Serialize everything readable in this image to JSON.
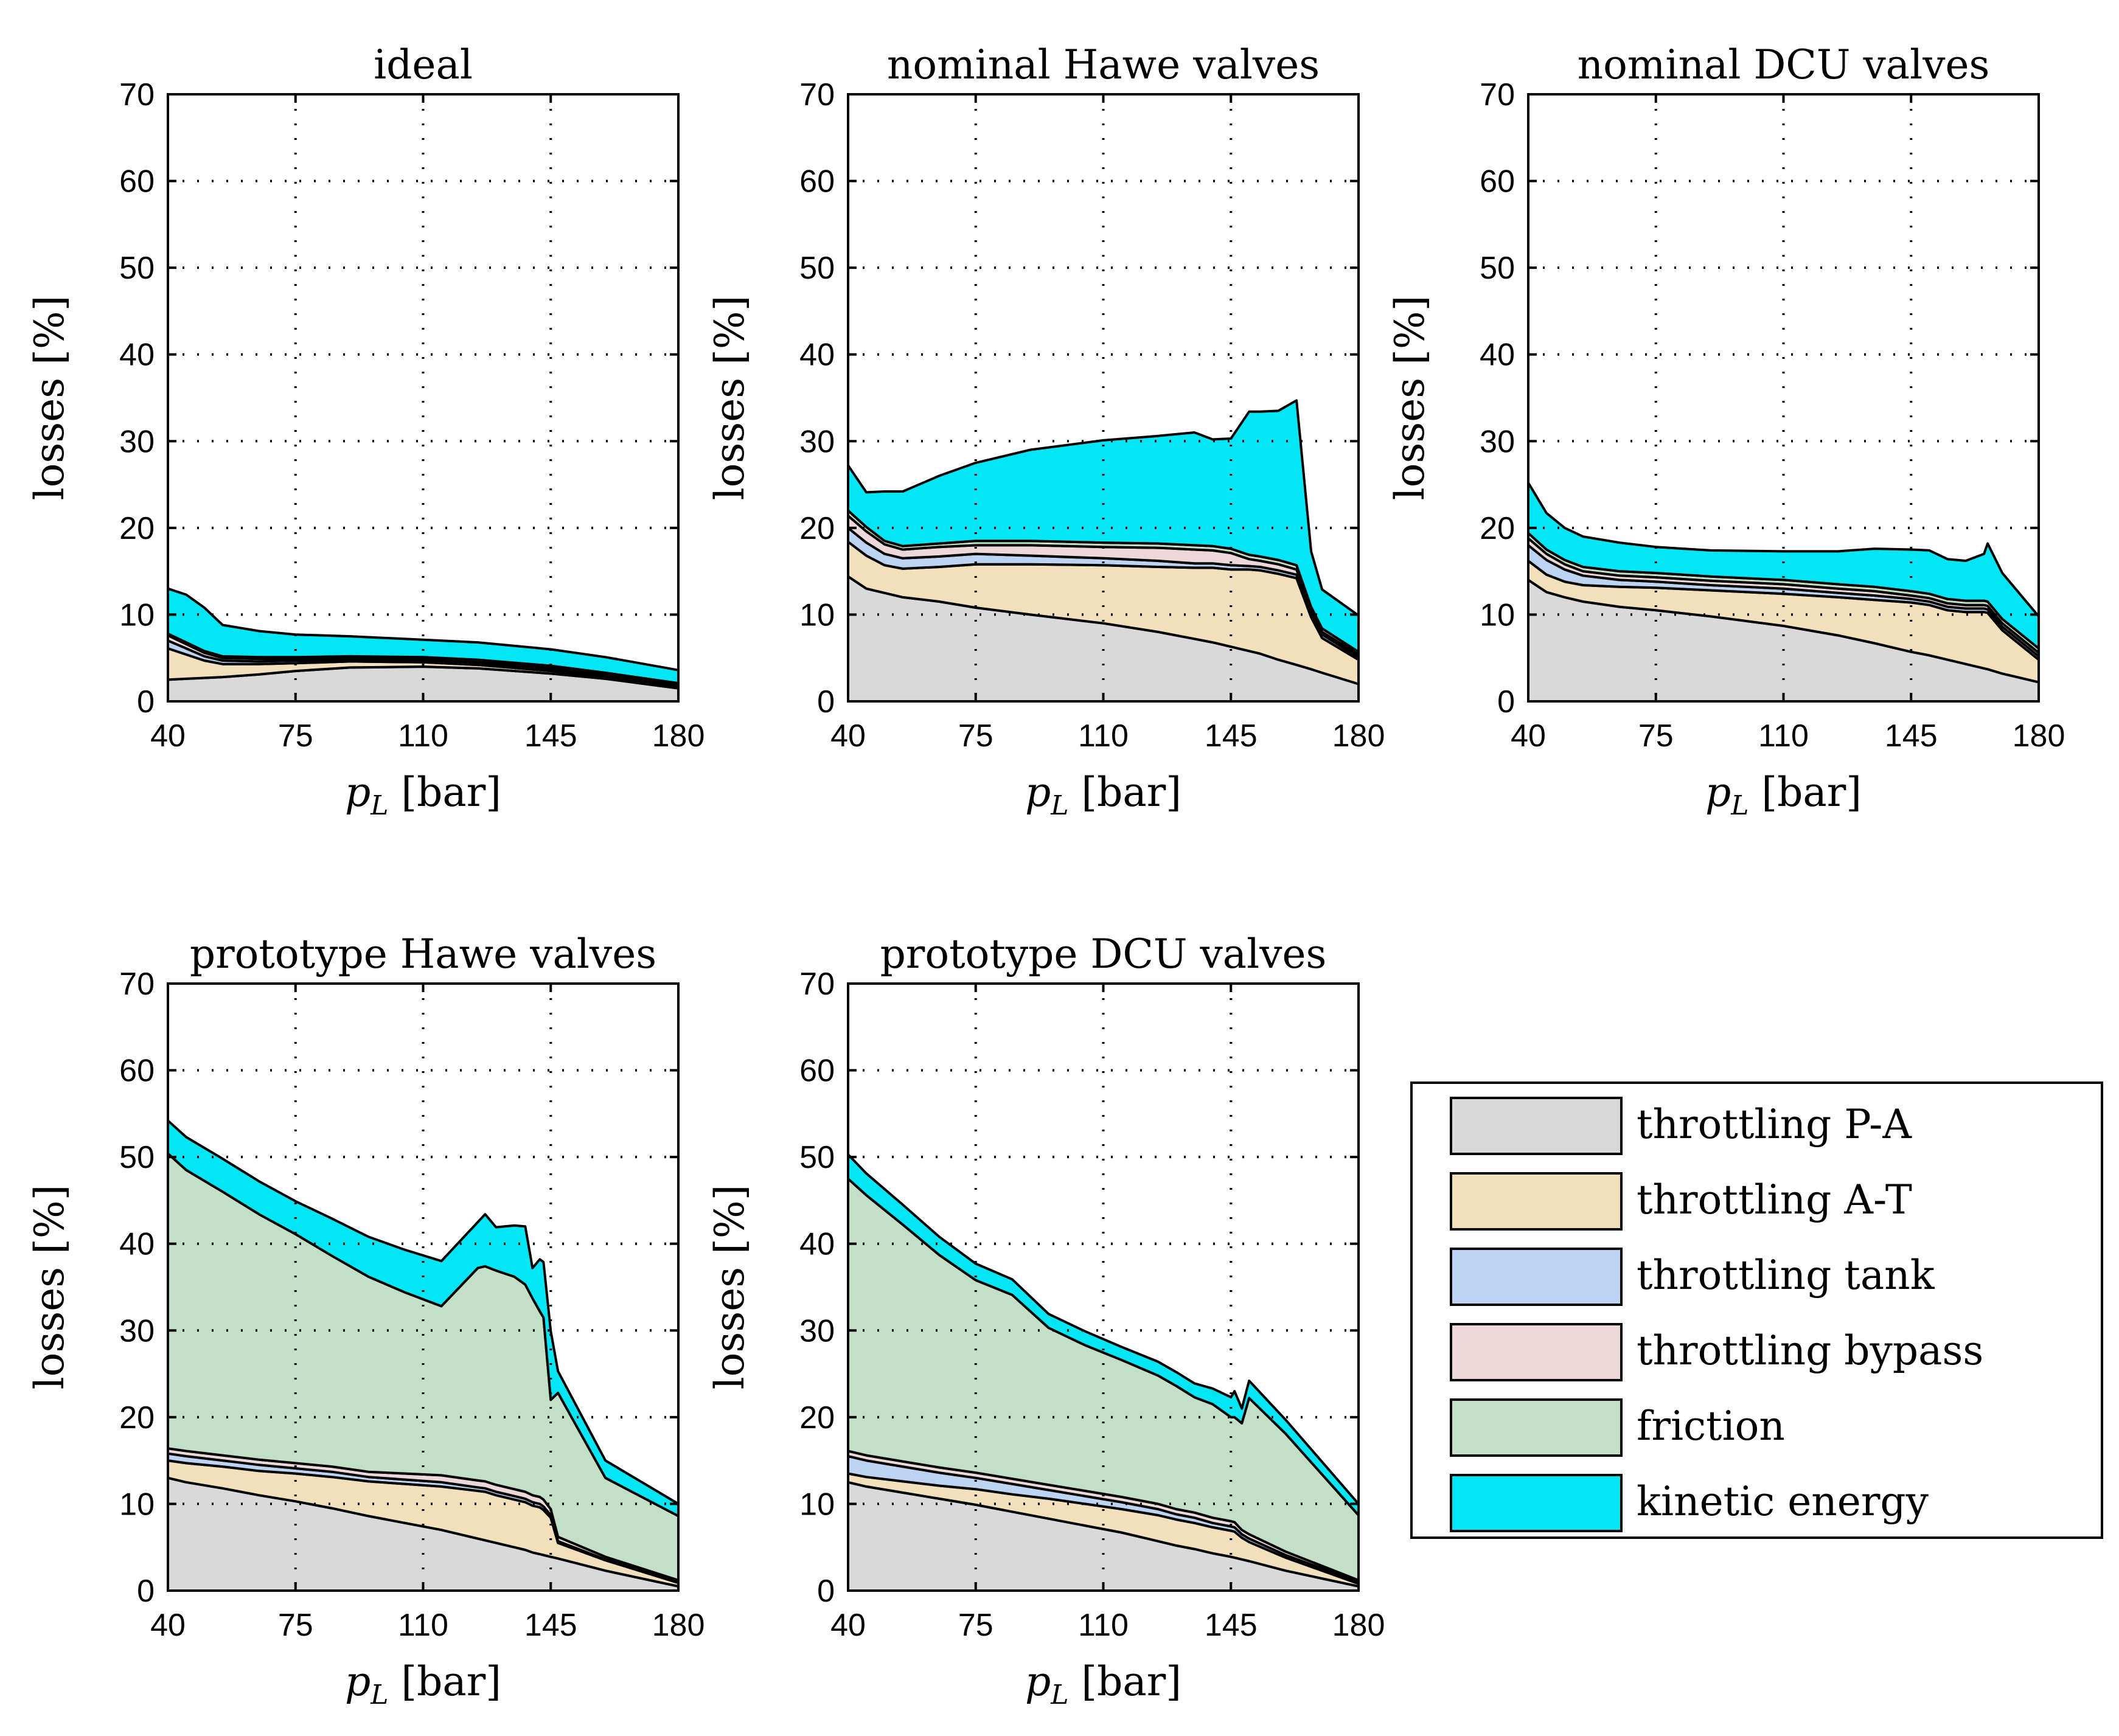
{
  "legend": [
    {
      "name": "throttling P-A",
      "color": "#d9d9d9"
    },
    {
      "name": "throttling A-T",
      "color": "#f2dfbb"
    },
    {
      "name": "throttling tank",
      "color": "#bcd3f2"
    },
    {
      "name": "throttling bypass",
      "color": "#ecd8d8"
    },
    {
      "name": "friction",
      "color": "#c3dfc7"
    },
    {
      "name": "kinetic energy",
      "color": "#00e6f5"
    }
  ],
  "chart_data": [
    {
      "type": "area",
      "title": "ideal",
      "xlabel": "p_L [bar]",
      "xlabel_var": "p",
      "xlabel_sub": "L",
      "xlabel_unit": "[bar]",
      "ylabel": "losses [%]",
      "xlim": [
        40,
        180
      ],
      "ylim": [
        0,
        70
      ],
      "xticks": [
        "40",
        "75",
        "110",
        "145",
        "180"
      ],
      "yticks": [
        "0",
        "10",
        "20",
        "30",
        "40",
        "50",
        "60",
        "70"
      ],
      "x": [
        40,
        45,
        50,
        55,
        65,
        75,
        90,
        110,
        125,
        145,
        160,
        180
      ],
      "series": [
        {
          "name": "throttling P-A",
          "values": [
            2.5,
            2.6,
            2.7,
            2.8,
            3.1,
            3.5,
            3.9,
            4.0,
            3.8,
            3.2,
            2.6,
            1.5
          ]
        },
        {
          "name": "throttling A-T",
          "values": [
            3.6,
            2.8,
            2.0,
            1.5,
            1.2,
            0.9,
            0.7,
            0.5,
            0.4,
            0.3,
            0.2,
            0.1
          ]
        },
        {
          "name": "throttling tank",
          "values": [
            0.9,
            0.7,
            0.5,
            0.4,
            0.3,
            0.3,
            0.2,
            0.2,
            0.2,
            0.2,
            0.1,
            0.1
          ]
        },
        {
          "name": "throttling bypass",
          "values": [
            0.6,
            0.5,
            0.4,
            0.3,
            0.3,
            0.2,
            0.2,
            0.2,
            0.2,
            0.2,
            0.2,
            0.2
          ]
        },
        {
          "name": "friction",
          "values": [
            0.2,
            0.2,
            0.2,
            0.2,
            0.2,
            0.2,
            0.2,
            0.2,
            0.2,
            0.2,
            0.2,
            0.2
          ]
        },
        {
          "name": "kinetic energy",
          "values": [
            5.2,
            5.5,
            5.0,
            3.6,
            3.0,
            2.6,
            2.3,
            2.0,
            2.0,
            1.9,
            1.8,
            1.5
          ]
        }
      ]
    },
    {
      "type": "area",
      "title": "nominal Hawe valves",
      "xlabel": "p_L [bar]",
      "xlabel_var": "p",
      "xlabel_sub": "L",
      "xlabel_unit": "[bar]",
      "ylabel": "losses [%]",
      "xlim": [
        40,
        180
      ],
      "ylim": [
        0,
        70
      ],
      "xticks": [
        "40",
        "75",
        "110",
        "145",
        "180"
      ],
      "yticks": [
        "0",
        "10",
        "20",
        "30",
        "40",
        "50",
        "60",
        "70"
      ],
      "x": [
        40,
        45,
        50,
        55,
        65,
        75,
        90,
        110,
        125,
        135,
        140,
        145,
        150,
        153,
        158,
        163,
        167,
        170,
        180
      ],
      "series": [
        {
          "name": "throttling P-A",
          "values": [
            14.4,
            13.0,
            12.5,
            12.0,
            11.5,
            10.8,
            10.0,
            9.0,
            8.0,
            7.2,
            6.8,
            6.3,
            5.8,
            5.5,
            4.8,
            4.2,
            3.7,
            3.3,
            2.0
          ]
        },
        {
          "name": "throttling A-T",
          "values": [
            4.0,
            3.8,
            3.2,
            3.3,
            4.0,
            5.0,
            5.8,
            6.7,
            7.5,
            8.2,
            8.6,
            8.9,
            9.4,
            9.6,
            9.9,
            10.0,
            6.0,
            4.0,
            2.8
          ]
        },
        {
          "name": "throttling tank",
          "values": [
            1.6,
            1.5,
            1.3,
            1.2,
            1.2,
            1.2,
            1.0,
            0.8,
            0.7,
            0.5,
            0.5,
            0.5,
            0.4,
            0.4,
            0.4,
            0.4,
            0.4,
            0.4,
            0.3
          ]
        },
        {
          "name": "throttling bypass",
          "values": [
            1.4,
            1.3,
            1.1,
            1.0,
            1.1,
            1.0,
            1.2,
            1.3,
            1.5,
            1.6,
            1.5,
            1.4,
            0.8,
            0.7,
            0.7,
            0.6,
            0.4,
            0.3,
            0.3
          ]
        },
        {
          "name": "friction",
          "values": [
            0.6,
            0.5,
            0.4,
            0.4,
            0.4,
            0.5,
            0.5,
            0.5,
            0.5,
            0.5,
            0.5,
            0.5,
            0.5,
            0.5,
            0.5,
            0.5,
            0.4,
            0.4,
            0.3
          ]
        },
        {
          "name": "kinetic energy",
          "values": [
            5.2,
            4.0,
            5.7,
            6.3,
            7.8,
            9.0,
            10.5,
            11.8,
            12.4,
            13.0,
            12.3,
            12.7,
            16.5,
            16.7,
            17.2,
            19.0,
            6.4,
            4.5,
            4.2
          ]
        }
      ]
    },
    {
      "type": "area",
      "title": "nominal DCU valves",
      "xlabel": "p_L [bar]",
      "xlabel_var": "p",
      "xlabel_sub": "L",
      "xlabel_unit": "[bar]",
      "ylabel": "losses [%]",
      "xlim": [
        40,
        180
      ],
      "ylim": [
        0,
        70
      ],
      "xticks": [
        "40",
        "75",
        "110",
        "145",
        "180"
      ],
      "yticks": [
        "0",
        "10",
        "20",
        "30",
        "40",
        "50",
        "60",
        "70"
      ],
      "x": [
        40,
        45,
        50,
        55,
        65,
        75,
        90,
        110,
        125,
        135,
        145,
        150,
        155,
        160,
        165,
        166,
        170,
        180
      ],
      "series": [
        {
          "name": "throttling P-A",
          "values": [
            14.0,
            12.6,
            12.0,
            11.5,
            10.9,
            10.5,
            9.8,
            8.7,
            7.6,
            6.7,
            5.7,
            5.3,
            4.8,
            4.3,
            3.8,
            3.7,
            3.2,
            2.2
          ]
        },
        {
          "name": "throttling A-T",
          "values": [
            2.2,
            2.0,
            1.8,
            1.9,
            2.3,
            2.6,
            3.0,
            3.7,
            4.4,
            5.0,
            5.7,
            5.8,
            5.7,
            6.0,
            6.5,
            6.5,
            5.0,
            2.6
          ]
        },
        {
          "name": "throttling tank",
          "values": [
            1.8,
            1.7,
            1.4,
            1.1,
            0.8,
            0.7,
            0.6,
            0.6,
            0.5,
            0.5,
            0.4,
            0.4,
            0.4,
            0.4,
            0.4,
            0.4,
            0.4,
            0.4
          ]
        },
        {
          "name": "throttling bypass",
          "values": [
            0.8,
            0.7,
            0.6,
            0.5,
            0.5,
            0.5,
            0.5,
            0.5,
            0.5,
            0.5,
            0.4,
            0.4,
            0.4,
            0.4,
            0.4,
            0.4,
            0.4,
            0.4
          ]
        },
        {
          "name": "friction",
          "values": [
            0.6,
            0.5,
            0.5,
            0.5,
            0.5,
            0.5,
            0.5,
            0.5,
            0.5,
            0.5,
            0.5,
            0.5,
            0.5,
            0.5,
            0.5,
            0.5,
            0.5,
            0.5
          ]
        },
        {
          "name": "kinetic energy",
          "values": [
            5.8,
            4.2,
            3.7,
            3.5,
            3.3,
            3.0,
            3.0,
            3.3,
            3.8,
            4.4,
            4.8,
            5.0,
            4.6,
            4.6,
            5.4,
            6.7,
            5.3,
            3.7
          ]
        }
      ]
    },
    {
      "type": "area",
      "title": "prototype Hawe valves",
      "xlabel": "p_L [bar]",
      "xlabel_var": "p",
      "xlabel_sub": "L",
      "xlabel_unit": "[bar]",
      "ylabel": "losses [%]",
      "xlim": [
        40,
        180
      ],
      "ylim": [
        0,
        70
      ],
      "xticks": [
        "40",
        "75",
        "110",
        "145",
        "180"
      ],
      "yticks": [
        "0",
        "10",
        "20",
        "30",
        "40",
        "50",
        "60",
        "70"
      ],
      "x": [
        40,
        45,
        55,
        65,
        75,
        85,
        95,
        105,
        115,
        125,
        127,
        130,
        135,
        138,
        140,
        142,
        143,
        145,
        147,
        160,
        180
      ],
      "series": [
        {
          "name": "throttling P-A",
          "values": [
            13.0,
            12.5,
            11.8,
            11.0,
            10.3,
            9.5,
            8.6,
            7.8,
            7.0,
            6.0,
            5.8,
            5.5,
            5.0,
            4.7,
            4.4,
            4.2,
            4.1,
            3.9,
            3.7,
            2.3,
            0.5
          ]
        },
        {
          "name": "throttling A-T",
          "values": [
            2.0,
            2.2,
            2.5,
            2.8,
            3.2,
            3.6,
            4.0,
            4.5,
            5.0,
            5.5,
            5.6,
            5.5,
            5.5,
            5.5,
            5.4,
            5.4,
            5.2,
            4.5,
            1.8,
            1.2,
            0.4
          ]
        },
        {
          "name": "throttling tank",
          "values": [
            0.8,
            0.8,
            0.7,
            0.7,
            0.6,
            0.6,
            0.5,
            0.5,
            0.5,
            0.4,
            0.4,
            0.4,
            0.4,
            0.4,
            0.4,
            0.4,
            0.4,
            0.3,
            0.2,
            0.1,
            0.1
          ]
        },
        {
          "name": "throttling bypass",
          "values": [
            0.6,
            0.6,
            0.6,
            0.6,
            0.6,
            0.6,
            0.6,
            0.7,
            0.8,
            0.8,
            0.8,
            0.8,
            0.8,
            0.8,
            0.8,
            0.8,
            0.8,
            0.7,
            0.5,
            0.3,
            0.2
          ]
        },
        {
          "name": "friction",
          "values": [
            34.0,
            32.4,
            30.4,
            28.3,
            26.4,
            24.3,
            22.5,
            20.9,
            19.5,
            24.5,
            24.8,
            24.7,
            24.5,
            23.9,
            22.7,
            21.4,
            21.0,
            12.6,
            16.6,
            9.1,
            7.4
          ]
        },
        {
          "name": "kinetic energy",
          "values": [
            3.8,
            3.8,
            3.8,
            3.8,
            3.8,
            4.3,
            4.6,
            4.9,
            5.2,
            5.3,
            6.0,
            5.0,
            5.9,
            6.7,
            3.5,
            6.0,
            6.4,
            7.9,
            2.5,
            2.0,
            1.4
          ]
        }
      ]
    },
    {
      "type": "area",
      "title": "prototype DCU valves",
      "xlabel": "p_L [bar]",
      "xlabel_var": "p",
      "xlabel_sub": "L",
      "xlabel_unit": "[bar]",
      "ylabel": "losses [%]",
      "xlim": [
        40,
        180
      ],
      "ylim": [
        0,
        70
      ],
      "xticks": [
        "40",
        "75",
        "110",
        "145",
        "180"
      ],
      "yticks": [
        "0",
        "10",
        "20",
        "30",
        "40",
        "50",
        "60",
        "70"
      ],
      "x": [
        40,
        45,
        55,
        65,
        75,
        85,
        95,
        105,
        115,
        125,
        130,
        135,
        140,
        145,
        146,
        148,
        150,
        160,
        180
      ],
      "series": [
        {
          "name": "throttling P-A",
          "values": [
            12.5,
            12.0,
            11.3,
            10.6,
            9.9,
            9.1,
            8.3,
            7.5,
            6.7,
            5.7,
            5.2,
            4.8,
            4.3,
            3.9,
            3.8,
            3.6,
            3.4,
            2.3,
            0.5
          ]
        },
        {
          "name": "throttling A-T",
          "values": [
            1.0,
            1.1,
            1.3,
            1.5,
            1.8,
            2.0,
            2.3,
            2.5,
            2.7,
            3.0,
            3.0,
            3.0,
            3.0,
            3.0,
            3.0,
            2.5,
            2.2,
            1.5,
            0.3
          ]
        },
        {
          "name": "throttling tank",
          "values": [
            2.0,
            1.9,
            1.7,
            1.5,
            1.3,
            1.2,
            1.0,
            0.9,
            0.8,
            0.7,
            0.6,
            0.6,
            0.5,
            0.5,
            0.5,
            0.4,
            0.4,
            0.3,
            0.2
          ]
        },
        {
          "name": "throttling bypass",
          "values": [
            0.6,
            0.6,
            0.6,
            0.6,
            0.6,
            0.6,
            0.6,
            0.6,
            0.6,
            0.6,
            0.6,
            0.6,
            0.6,
            0.6,
            0.6,
            0.5,
            0.5,
            0.4,
            0.2
          ]
        },
        {
          "name": "friction",
          "values": [
            31.4,
            30.0,
            27.3,
            24.5,
            22.2,
            21.2,
            18.1,
            16.8,
            15.8,
            14.8,
            14.2,
            13.3,
            13.1,
            12.0,
            12.1,
            12.3,
            15.7,
            13.6,
            7.5
          ]
        },
        {
          "name": "kinetic energy",
          "values": [
            2.8,
            2.5,
            2.3,
            2.1,
            1.9,
            1.8,
            1.6,
            1.6,
            1.5,
            1.6,
            1.6,
            1.6,
            1.8,
            2.3,
            3.0,
            1.7,
            2.0,
            1.6,
            1.3
          ]
        }
      ]
    }
  ]
}
